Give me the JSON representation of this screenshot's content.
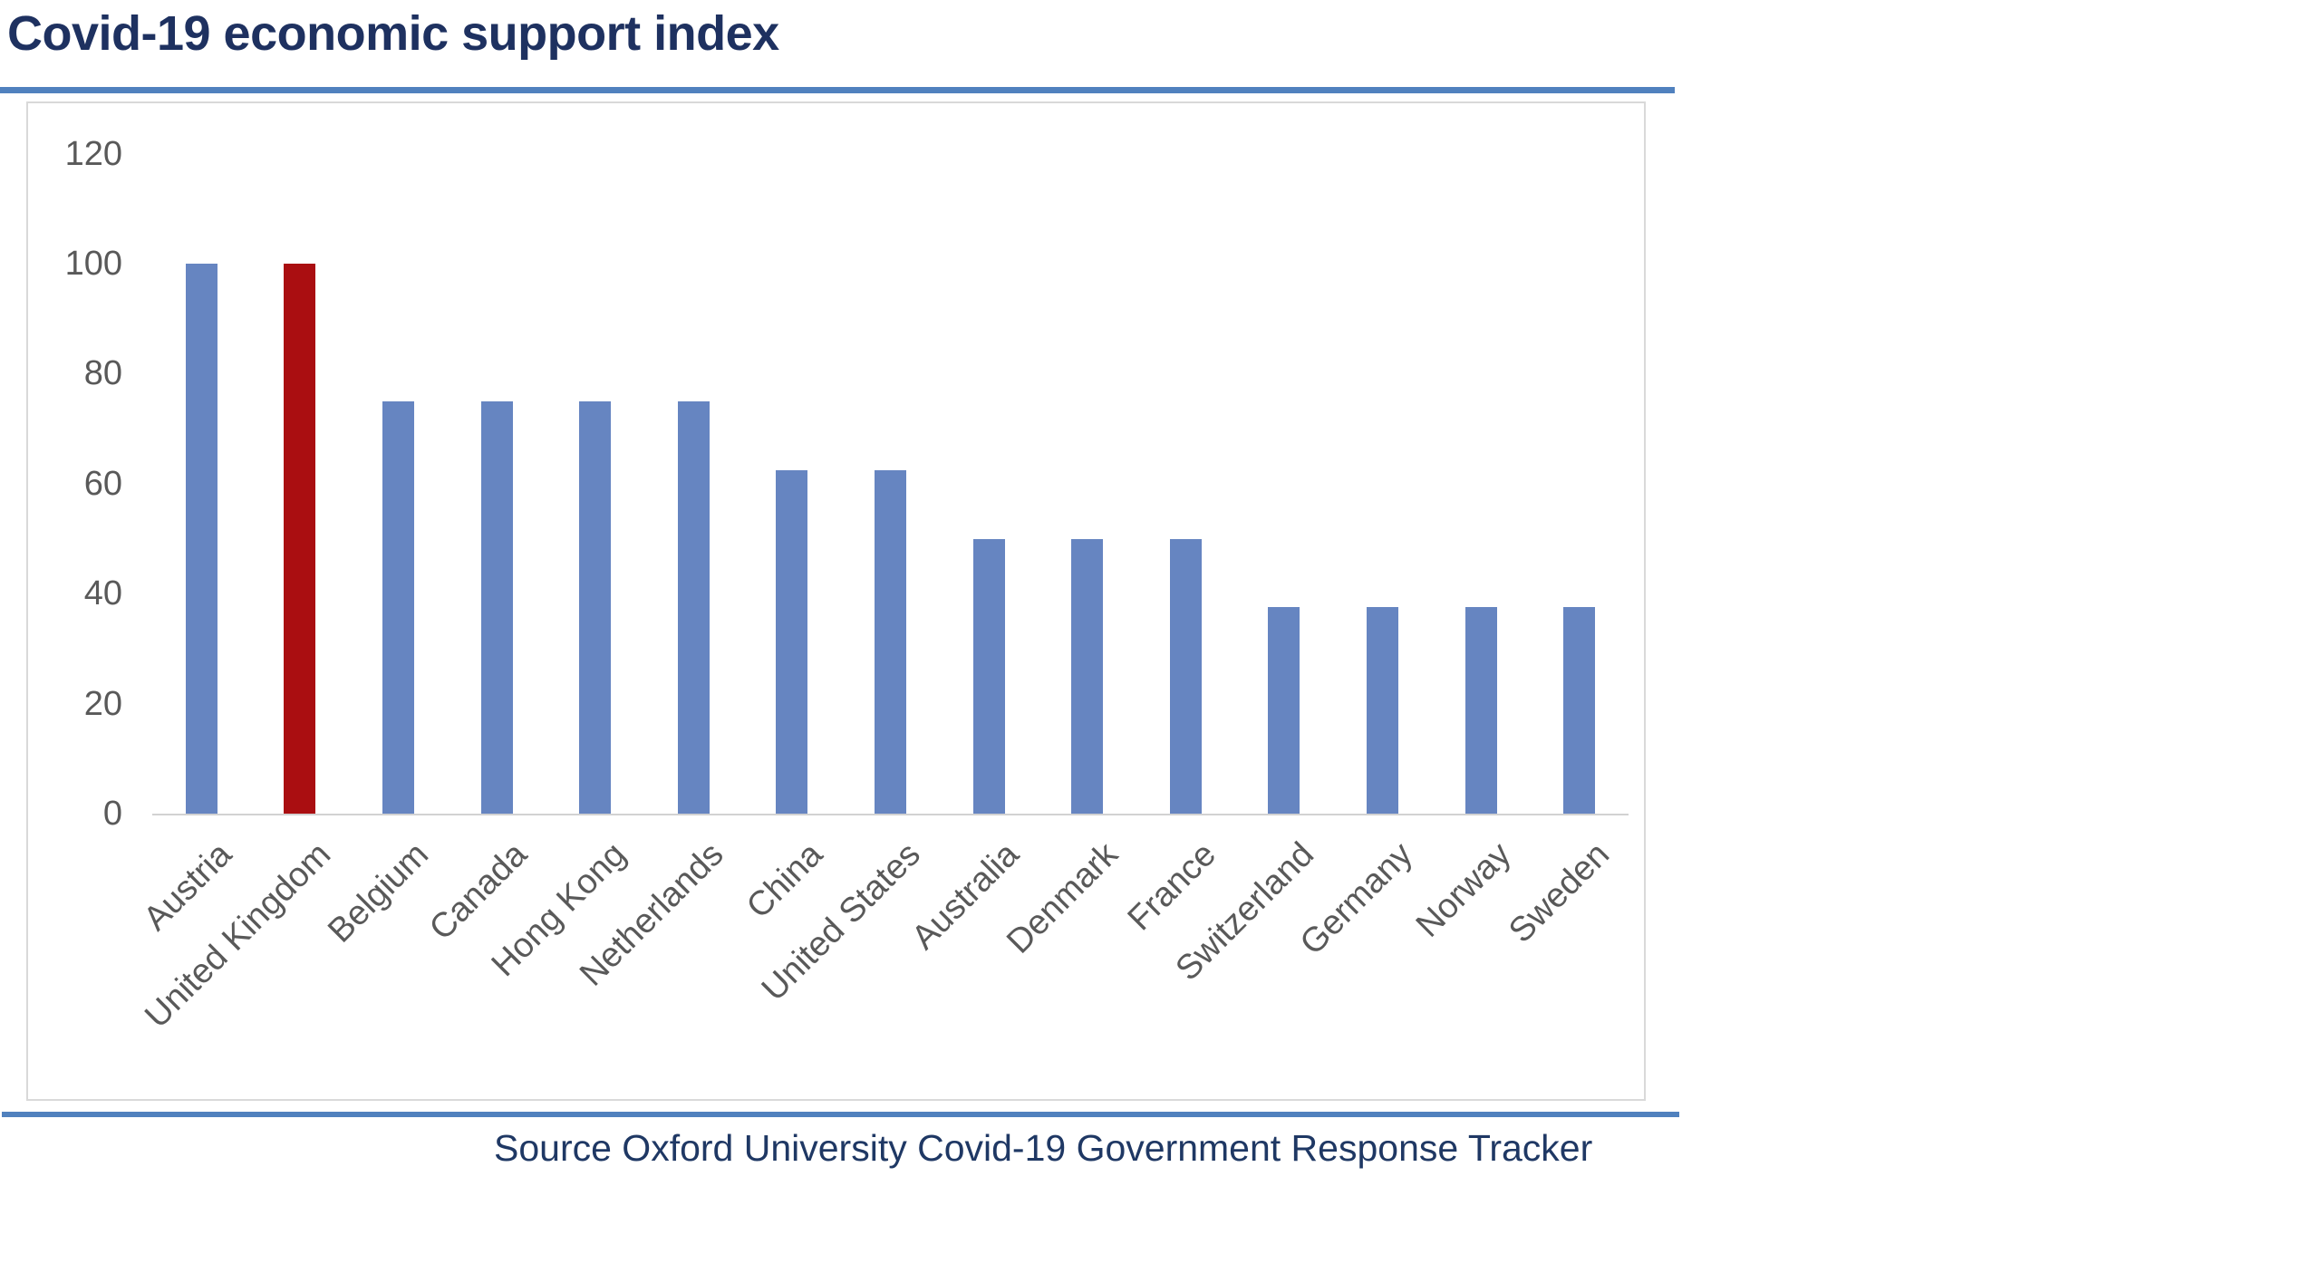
{
  "title": "Covid-19 economic support index",
  "source": "Source Oxford University Covid-19 Government Response Tracker",
  "colors": {
    "title_text": "#1e3160",
    "source_text": "#1f3864",
    "accent_rule": "#5081be",
    "axis_text": "#595959",
    "frame_border": "#d9d9d9",
    "axis_line": "#d2d2d2",
    "bar_default": "#6685c1",
    "bar_highlight": "#aa0e11"
  },
  "chart_data": {
    "type": "bar",
    "title": "Covid-19 economic support index",
    "categories": [
      "Austria",
      "United Kingdom",
      "Belgium",
      "Canada",
      "Hong Kong",
      "Netherlands",
      "China",
      "United States",
      "Australia",
      "Denmark",
      "France",
      "Switzerland",
      "Germany",
      "Norway",
      "Sweden"
    ],
    "values": [
      100,
      100,
      75,
      75,
      75,
      75,
      62.5,
      62.5,
      50,
      50,
      50,
      37.5,
      37.5,
      37.5,
      37.5
    ],
    "highlighted_category": "United Kingdom",
    "highlight_index": 1,
    "xlabel": "",
    "ylabel": "",
    "y_ticks": [
      0,
      20,
      40,
      60,
      80,
      100,
      120
    ],
    "ylim": [
      0,
      120
    ],
    "grid": false,
    "legend": false,
    "x_label_rotation_deg": 45,
    "caption": "Source Oxford University Covid-19 Government Response Tracker"
  }
}
